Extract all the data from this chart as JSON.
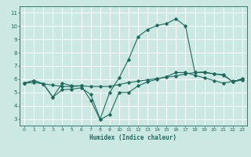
{
  "title": "",
  "xlabel": "Humidex (Indice chaleur)",
  "ylabel": "",
  "bg_color": "#cbe8e3",
  "grid_color": "#ffffff",
  "line_color": "#1e6b5e",
  "tick_color": "#1e6b5e",
  "x_ticks": [
    0,
    1,
    2,
    3,
    4,
    5,
    6,
    7,
    8,
    9,
    10,
    11,
    12,
    13,
    14,
    15,
    16,
    17,
    18,
    19,
    20,
    21,
    22,
    23
  ],
  "y_ticks": [
    3,
    4,
    5,
    6,
    7,
    8,
    9,
    10,
    11
  ],
  "xlim": [
    -0.5,
    23.5
  ],
  "ylim": [
    2.5,
    11.5
  ],
  "series": [
    [
      5.7,
      5.9,
      5.65,
      4.65,
      5.7,
      5.5,
      5.5,
      4.4,
      2.95,
      3.35,
      5.0,
      5.0,
      5.5,
      5.8,
      6.0,
      6.2,
      6.5,
      6.5,
      6.3,
      6.1,
      5.9,
      5.7,
      5.85,
      6.0
    ],
    [
      5.7,
      5.9,
      5.65,
      4.65,
      5.2,
      5.25,
      5.35,
      4.85,
      3.0,
      5.0,
      6.1,
      7.5,
      9.2,
      9.75,
      10.05,
      10.2,
      10.55,
      10.0,
      6.5,
      6.55,
      6.4,
      6.35,
      5.8,
      6.05
    ],
    [
      5.7,
      5.75,
      5.65,
      5.55,
      5.45,
      5.45,
      5.5,
      5.45,
      5.45,
      5.45,
      5.6,
      5.75,
      5.85,
      5.95,
      6.05,
      6.15,
      6.25,
      6.4,
      6.5,
      6.5,
      6.4,
      6.3,
      5.8,
      5.95
    ]
  ]
}
